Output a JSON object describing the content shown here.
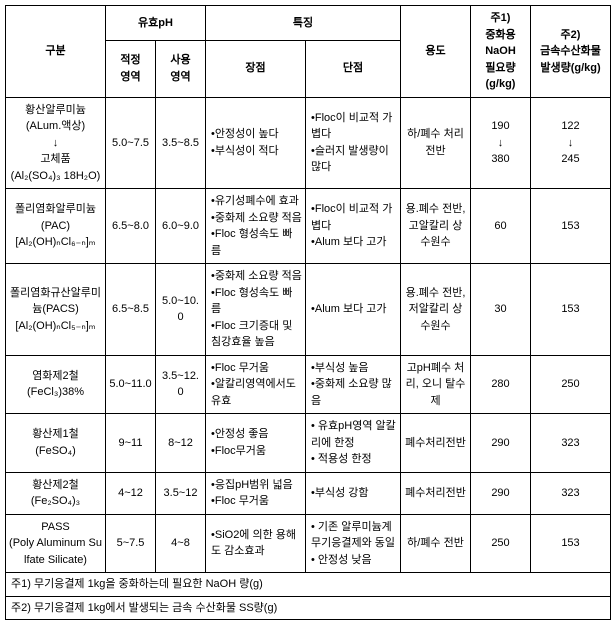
{
  "headers": {
    "category": "구분",
    "phGroup": "유효pH",
    "phOptimal": "적정\n영역",
    "phUse": "사용\n영역",
    "featGroup": "특징",
    "pros": "장점",
    "cons": "단점",
    "use": "용도",
    "naoh": "주1)\n중화용\nNaOH\n필요량\n(g/kg)",
    "hydroxide": "주2)\n금속수산화물\n발생량(g/kg)"
  },
  "rows": [
    {
      "name": "황산알루미늄\n(ALum.액상)\n↓\n고체품\n(Al₂(SO₄)₃ 18H₂O)",
      "phOpt": "5.0~7.5",
      "phUse": "3.5~8.5",
      "pros": "•안정성이 높다\n•부식성이 적다",
      "cons": "•Floc이 비교적 가볍다\n•슬러지 발생량이 많다",
      "use": "하/폐수 처리 전반",
      "naoh": "190\n↓\n380",
      "hyd": "122\n↓\n245"
    },
    {
      "name": "폴리염화알루미늄\n(PAC)\n[Al₂(OH)ₙCl₆₋ₙ]ₘ",
      "phOpt": "6.5~8.0",
      "phUse": "6.0~9.0",
      "pros": "•유기성폐수에 효과\n•중화제 소요량 적음\n•Floc 형성속도 빠름",
      "cons": "•Floc이 비교적 가볍다\n•Alum 보다 고가",
      "use": "용.폐수 전반, 고알칼리 상수원수",
      "naoh": "60",
      "hyd": "153"
    },
    {
      "name": "폴리염화규산알루미늄(PACS)\n[Al₂(OH)ₙCl₅₋ₙ]ₘ",
      "phOpt": "6.5~8.5",
      "phUse": "5.0~10.0",
      "pros": "•중화제 소요량 적음\n•Floc 형성속도 빠름\n•Floc 크기증대 및 침강효율 높음",
      "cons": "•Alum 보다 고가",
      "use": "용.폐수 전반, 저알칼리 상수원수",
      "naoh": "30",
      "hyd": "153"
    },
    {
      "name": "염화제2철\n(FeCl₃)38%",
      "phOpt": "5.0~11.0",
      "phUse": "3.5~12.0",
      "pros": "•Floc 무거움\n•알칼리영역에서도 유효",
      "cons": "•부식성 높음\n•중화제 소요량 많음",
      "use": "고pH폐수 처리, 오니 탈수제",
      "naoh": "280",
      "hyd": "250"
    },
    {
      "name": "황산제1철\n(FeSO₄)",
      "phOpt": "9~11",
      "phUse": "8~12",
      "pros": "•안정성 좋음\n•Floc무거움",
      "cons": "• 유효pH영역 알칼리에 한정\n• 적용성 한정",
      "use": "폐수처리전반",
      "naoh": "290",
      "hyd": "323"
    },
    {
      "name": "황산제2철\n(Fe₂SO₄)₃",
      "phOpt": "4~12",
      "phUse": "3.5~12",
      "pros": "•응집pH범위 넓음\n•Floc 무거움",
      "cons": "•부식성 강함",
      "use": "폐수처리전반",
      "naoh": "290",
      "hyd": "323"
    },
    {
      "name": "PASS\n(Poly Aluminum Sulfate Silicate)",
      "phOpt": "5~7.5",
      "phUse": "4~8",
      "pros": "•SiO2에 의한 용해도 감소효과",
      "cons": "• 기존 알루미늄계 무기응결제와 동일\n• 안정성 낮음",
      "use": "하/폐수 전반",
      "naoh": "250",
      "hyd": "153"
    }
  ],
  "notes": {
    "n1": "주1) 무기응결제 1kg을 중화하는데 필요한 NaOH 량(g)",
    "n2": "주2) 무기응결제 1kg에서 발생되는 금속 수산화물 SS량(g)"
  }
}
